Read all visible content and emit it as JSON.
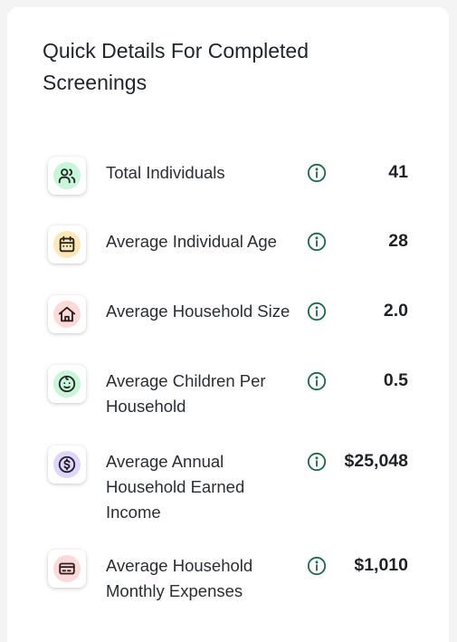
{
  "card": {
    "title": "Quick Details For Completed Screenings"
  },
  "stats": [
    {
      "label": "Total Individuals",
      "value": "41",
      "icon": "people-icon",
      "icon_bg": "#c9f5da",
      "icon_color": "#1e2a24"
    },
    {
      "label": "Average Individual Age",
      "value": "28",
      "icon": "calendar-icon",
      "icon_bg": "#fde7b8",
      "icon_color": "#2a2416"
    },
    {
      "label": "Average Household Size",
      "value": "2.0",
      "icon": "house-icon",
      "icon_bg": "#fddada",
      "icon_color": "#2a1d1d"
    },
    {
      "label": "Average Children Per Household",
      "value": "0.5",
      "icon": "child-face-icon",
      "icon_bg": "#c9f5da",
      "icon_color": "#1e2a24"
    },
    {
      "label": "Average Annual Household Earned Income",
      "value": "$25,048",
      "icon": "dollar-coin-icon",
      "icon_bg": "#e0d6fb",
      "icon_color": "#221e2e"
    },
    {
      "label": "Average Household Monthly Expenses",
      "value": "$1,010",
      "icon": "credit-card-icon",
      "icon_bg": "#fddada",
      "icon_color": "#2a1d1d"
    }
  ],
  "theme": {
    "info_icon_color": "#1e6b4a"
  }
}
